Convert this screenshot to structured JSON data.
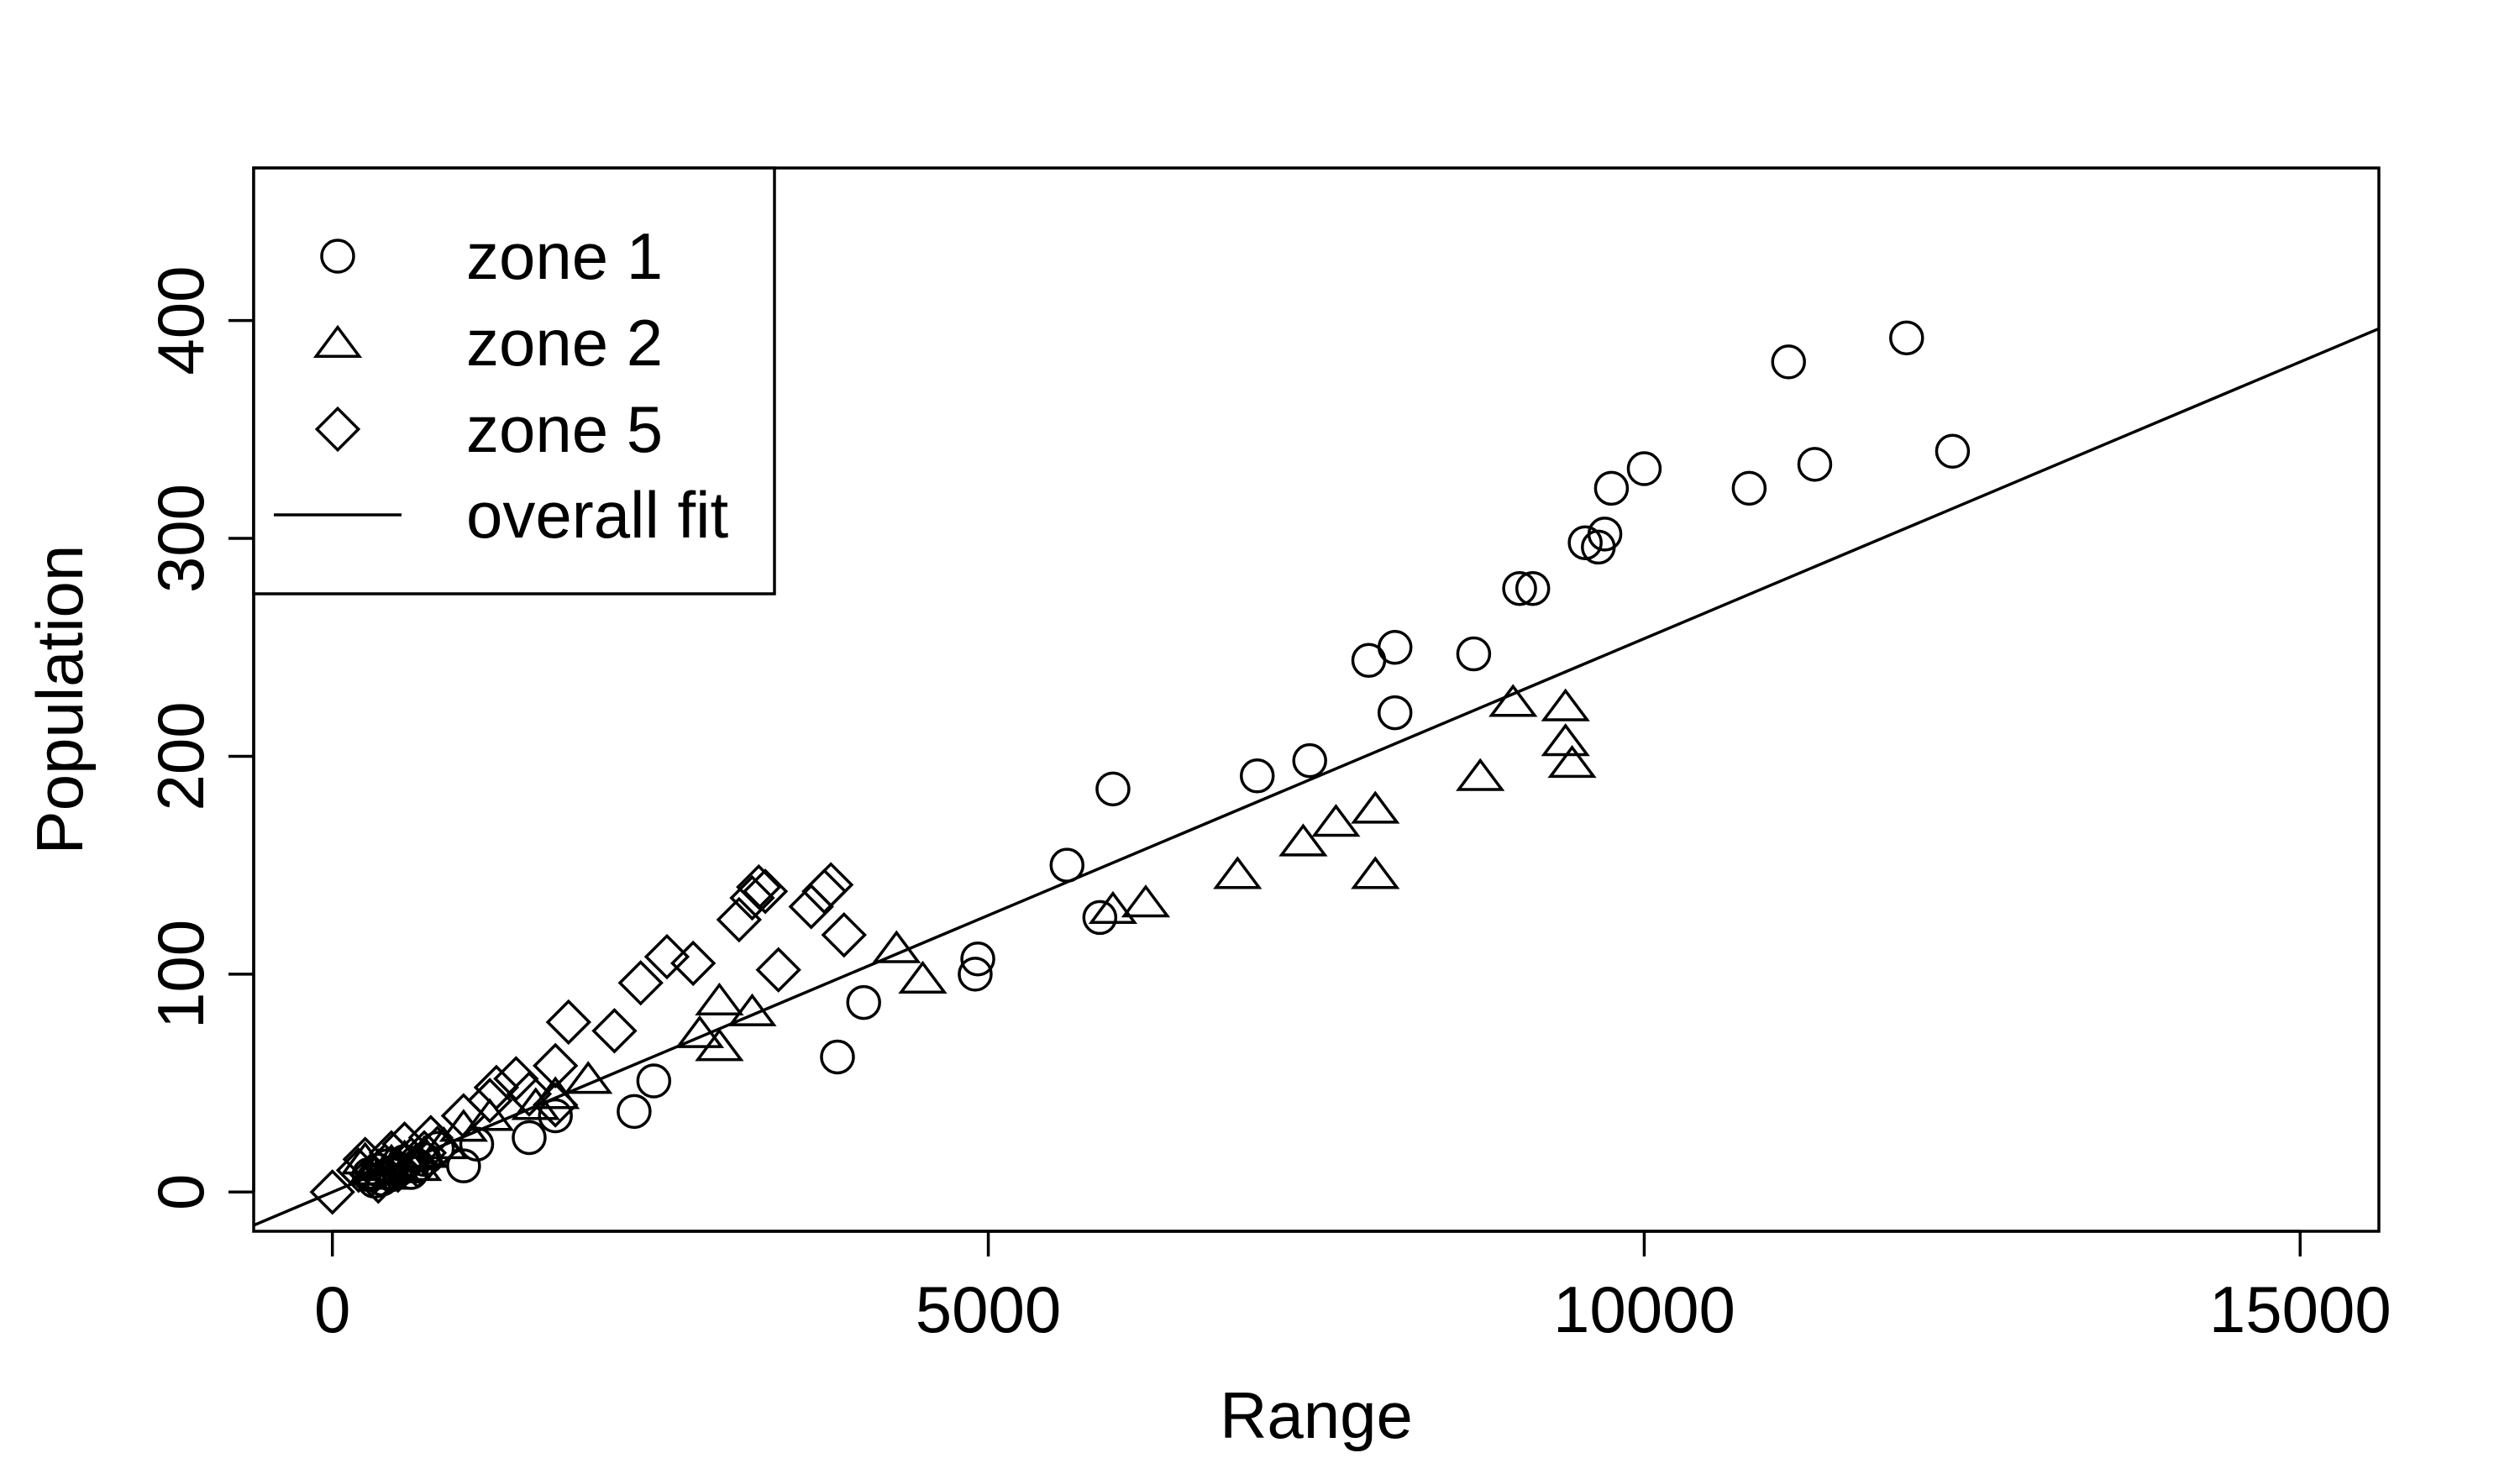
{
  "chart_data": {
    "type": "scatter",
    "title": "",
    "xlabel": "Range",
    "ylabel": "Population",
    "xlim": [
      -600,
      15600
    ],
    "ylim": [
      -18,
      470
    ],
    "x_ticks": [
      0,
      5000,
      10000,
      15000
    ],
    "y_ticks": [
      0,
      100,
      200,
      300,
      400
    ],
    "x_tick_labels": [
      "0",
      "5000",
      "10000",
      "15000"
    ],
    "y_tick_labels": [
      "0",
      "100",
      "200",
      "300",
      "400"
    ],
    "grid": false,
    "legend_position": "top-left",
    "legend": [
      "zone 1",
      "zone 2",
      "zone 5",
      "overall fit"
    ],
    "series": [
      {
        "name": "zone 1",
        "marker": "circle",
        "points": [
          [
            280,
            8
          ],
          [
            320,
            5
          ],
          [
            350,
            10
          ],
          [
            380,
            6
          ],
          [
            420,
            12
          ],
          [
            450,
            8
          ],
          [
            500,
            10
          ],
          [
            550,
            14
          ],
          [
            600,
            9
          ],
          [
            650,
            12
          ],
          [
            700,
            15
          ],
          [
            800,
            20
          ],
          [
            1000,
            12
          ],
          [
            1100,
            22
          ],
          [
            1500,
            25
          ],
          [
            1700,
            35
          ],
          [
            2300,
            37
          ],
          [
            2450,
            51
          ],
          [
            3850,
            62
          ],
          [
            4050,
            87
          ],
          [
            4900,
            100
          ],
          [
            4920,
            107
          ],
          [
            5600,
            150
          ],
          [
            5850,
            126
          ],
          [
            5950,
            185
          ],
          [
            7050,
            191
          ],
          [
            7450,
            198
          ],
          [
            7900,
            244
          ],
          [
            8100,
            250
          ],
          [
            8100,
            220
          ],
          [
            8700,
            247
          ],
          [
            9050,
            277
          ],
          [
            9150,
            277
          ],
          [
            9550,
            298
          ],
          [
            9650,
            296
          ],
          [
            9700,
            302
          ],
          [
            9750,
            323
          ],
          [
            10000,
            332
          ],
          [
            10800,
            323
          ],
          [
            11100,
            381
          ],
          [
            11300,
            334
          ],
          [
            12000,
            392
          ],
          [
            12350,
            340
          ]
        ]
      },
      {
        "name": "zone 2",
        "marker": "triangle",
        "points": [
          [
            250,
            15
          ],
          [
            300,
            10
          ],
          [
            350,
            12
          ],
          [
            400,
            8
          ],
          [
            450,
            14
          ],
          [
            500,
            11
          ],
          [
            550,
            16
          ],
          [
            650,
            12
          ],
          [
            700,
            18
          ],
          [
            850,
            22
          ],
          [
            1000,
            30
          ],
          [
            1200,
            35
          ],
          [
            1550,
            40
          ],
          [
            1700,
            45
          ],
          [
            1950,
            52
          ],
          [
            2800,
            73
          ],
          [
            2950,
            88
          ],
          [
            2950,
            67
          ],
          [
            3200,
            83
          ],
          [
            4300,
            112
          ],
          [
            4500,
            98
          ],
          [
            5950,
            130
          ],
          [
            6200,
            133
          ],
          [
            6900,
            146
          ],
          [
            7400,
            161
          ],
          [
            7650,
            170
          ],
          [
            7950,
            176
          ],
          [
            7950,
            146
          ],
          [
            8750,
            191
          ],
          [
            9000,
            225
          ],
          [
            9400,
            223
          ],
          [
            9400,
            207
          ],
          [
            9450,
            197
          ]
        ]
      },
      {
        "name": "zone 5",
        "marker": "diamond",
        "points": [
          [
            0,
            0
          ],
          [
            200,
            10
          ],
          [
            250,
            15
          ],
          [
            300,
            8
          ],
          [
            350,
            5
          ],
          [
            400,
            12
          ],
          [
            450,
            18
          ],
          [
            500,
            10
          ],
          [
            550,
            22
          ],
          [
            600,
            15
          ],
          [
            650,
            12
          ],
          [
            700,
            18
          ],
          [
            750,
            25
          ],
          [
            800,
            20
          ],
          [
            1000,
            35
          ],
          [
            1200,
            42
          ],
          [
            1250,
            48
          ],
          [
            1400,
            52
          ],
          [
            1500,
            45
          ],
          [
            1700,
            40
          ],
          [
            1700,
            58
          ],
          [
            1800,
            78
          ],
          [
            2150,
            74
          ],
          [
            2350,
            96
          ],
          [
            2550,
            108
          ],
          [
            2750,
            105
          ],
          [
            3100,
            125
          ],
          [
            3200,
            135
          ],
          [
            3250,
            140
          ],
          [
            3300,
            138
          ],
          [
            3400,
            102
          ],
          [
            3650,
            131
          ],
          [
            3750,
            138
          ],
          [
            3800,
            141
          ],
          [
            3900,
            118
          ]
        ]
      }
    ],
    "fit_line": {
      "name": "overall fit",
      "slope": 0.0254,
      "intercept": 0
    }
  }
}
